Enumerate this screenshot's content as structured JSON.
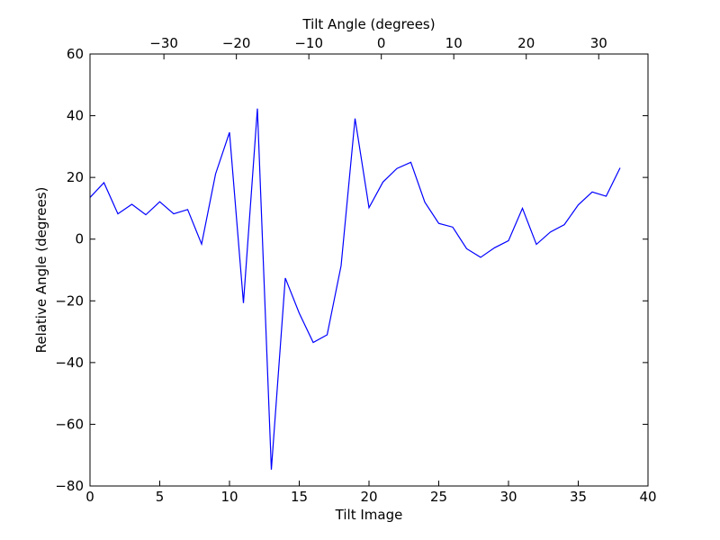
{
  "chart_data": {
    "type": "line",
    "title": "",
    "xlabel": "Tilt Image",
    "ylabel": "Relative Angle (degrees)",
    "top_xlabel": "Tilt Angle (degrees)",
    "xlim": [
      0,
      40
    ],
    "ylim": [
      -80,
      60
    ],
    "top_xlim": [
      -40.2,
      36.8
    ],
    "grid": false,
    "line_color": "#0000ff",
    "x_ticks": [
      0,
      5,
      10,
      15,
      20,
      25,
      30,
      35,
      40
    ],
    "x_tick_labels": [
      "0",
      "5",
      "10",
      "15",
      "20",
      "25",
      "30",
      "35",
      "40"
    ],
    "y_ticks": [
      60,
      40,
      20,
      0,
      -20,
      -40,
      -60,
      -80
    ],
    "y_tick_labels": [
      "60",
      "40",
      "20",
      "0",
      "−20",
      "−40",
      "−60",
      "−80"
    ],
    "top_ticks": [
      -30,
      -20,
      -10,
      0,
      10,
      20,
      30
    ],
    "top_tick_labels": [
      "−30",
      "−20",
      "−10",
      "0",
      "10",
      "20",
      "30"
    ],
    "series": [
      {
        "x": [
          0,
          1,
          2,
          3,
          4,
          5,
          6,
          7,
          8,
          9,
          10,
          11,
          12,
          13,
          14,
          15,
          16,
          17,
          18,
          19,
          20,
          21,
          22,
          23,
          24,
          25,
          26,
          27,
          28,
          29,
          30,
          31,
          32,
          33,
          34,
          35,
          36,
          37,
          38
        ],
        "values": [
          13.5,
          18.3,
          8.2,
          11.3,
          7.9,
          12.1,
          8.2,
          9.6,
          -1.6,
          21.1,
          34.6,
          -20.7,
          42.3,
          -74.7,
          -12.6,
          -24.0,
          -33.5,
          -31.0,
          -8.6,
          39.1,
          10.2,
          18.5,
          22.9,
          24.9,
          12.0,
          5.1,
          3.9,
          -3.1,
          -5.9,
          -2.8,
          -0.5,
          10.0,
          -1.7,
          2.3,
          4.7,
          11.1,
          15.3,
          13.9,
          23.1
        ]
      }
    ]
  }
}
